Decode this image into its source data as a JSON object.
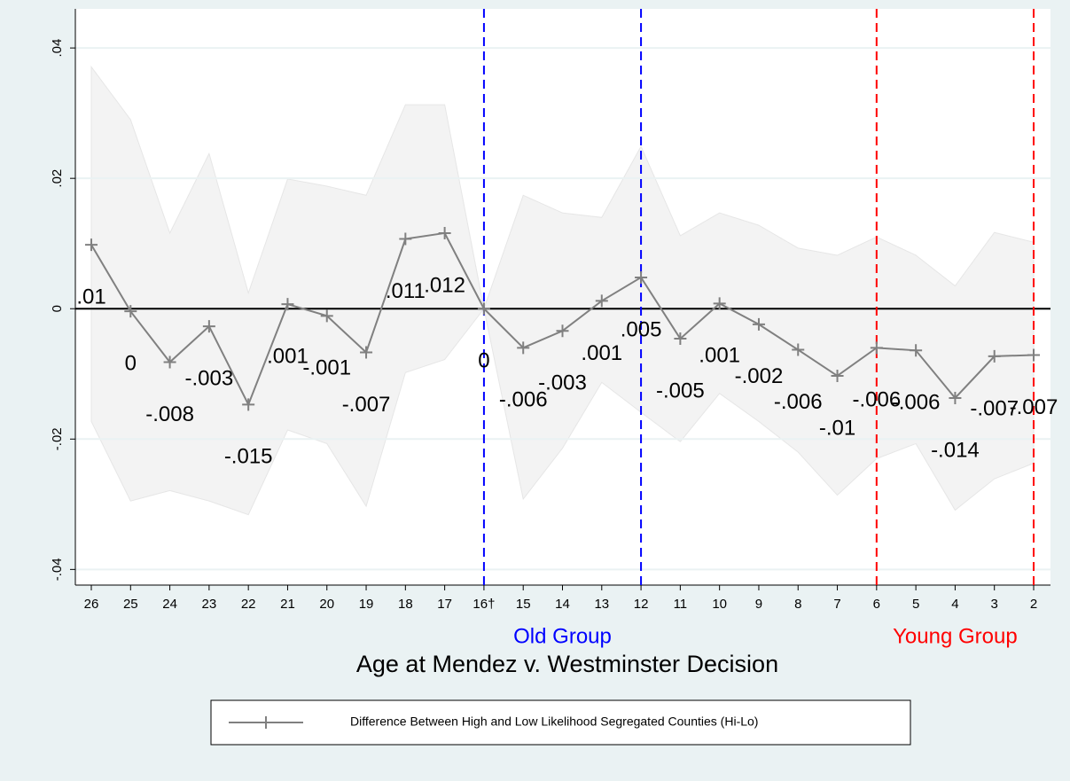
{
  "chart_data": {
    "type": "line",
    "x_label": "Age at Mendez v. Westminster Decision",
    "categories": [
      "26",
      "25",
      "24",
      "23",
      "22",
      "21",
      "20",
      "19",
      "18",
      "17",
      "16†",
      "15",
      "14",
      "13",
      "12",
      "11",
      "10",
      "9",
      "8",
      "7",
      "6",
      "5",
      "4",
      "3",
      "2"
    ],
    "series": [
      {
        "name": "Difference Between High and Low Likelihood Segregated Counties (Hi-Lo)",
        "color": "#808080",
        "values": [
          0.0098,
          -0.0004,
          -0.0082,
          -0.0027,
          -0.0147,
          0.0007,
          -0.0011,
          -0.0067,
          0.0107,
          0.0116,
          0,
          -0.006,
          -0.0034,
          0.0012,
          0.0048,
          -0.0046,
          0.0008,
          -0.0024,
          -0.0063,
          -0.0103,
          -0.006,
          -0.0064,
          -0.0137,
          -0.0073,
          -0.0071
        ],
        "value_labels": [
          ".01",
          "0",
          "-.008",
          "-.003",
          "-.015",
          ".001",
          "-.001",
          "-.007",
          ".011",
          ".012",
          "0",
          "-.006",
          "-.003",
          ".001",
          ".005",
          "-.005",
          ".001",
          "-.002",
          "-.006",
          "-.01",
          "-.006",
          "-.006",
          "-.014",
          "-.007",
          "-.007"
        ]
      }
    ],
    "ci_upper": [
      0.0371,
      0.029,
      0.0116,
      0.0238,
      0.0024,
      0.0199,
      0.0188,
      0.0174,
      0.0313,
      0.0313,
      0,
      0.0174,
      0.0147,
      0.014,
      0.0249,
      0.0112,
      0.0147,
      0.0128,
      0.0093,
      0.0082,
      0.011,
      0.0082,
      0.0035,
      0.0117,
      0.0102
    ],
    "ci_lower": [
      -0.0173,
      -0.0295,
      -0.0279,
      -0.0295,
      -0.0316,
      -0.0186,
      -0.0207,
      -0.0303,
      -0.0098,
      -0.0078,
      0,
      -0.0292,
      -0.0214,
      -0.0113,
      -0.0159,
      -0.0204,
      -0.013,
      -0.0173,
      -0.022,
      -0.0286,
      -0.023,
      -0.0207,
      -0.0309,
      -0.0261,
      -0.0237
    ],
    "ci_color": "#f3f3f3",
    "ylim": [
      -0.0424,
      0.046
    ],
    "yticks": [
      {
        "value": -0.04,
        "label": "-.04"
      },
      {
        "value": -0.02,
        "label": "-.02"
      },
      0,
      {
        "value": 0.02,
        "label": ".02"
      },
      {
        "value": 0.04,
        "label": ".04"
      }
    ],
    "grid": true,
    "zero_line": true,
    "vlines": [
      {
        "at": "16†",
        "color": "#0000ff"
      },
      {
        "at": "12",
        "color": "#0000ff"
      },
      {
        "at": "6",
        "color": "#ff0000"
      },
      {
        "at": "2",
        "color": "#ff0000"
      }
    ],
    "group_labels": [
      {
        "text": "Old Group",
        "from": "16†",
        "to": "12",
        "color": "#0000ff"
      },
      {
        "text": "Young Group",
        "from": "6",
        "to": "2",
        "color": "#ff0000"
      }
    ],
    "legend": "bottom"
  }
}
